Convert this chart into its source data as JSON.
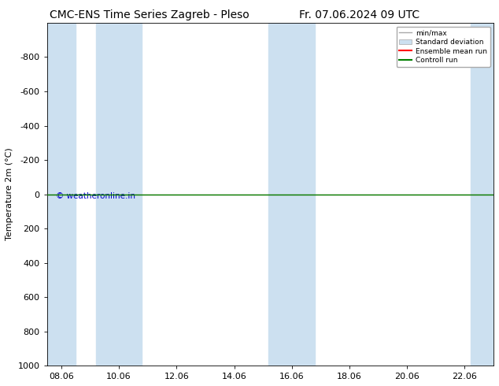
{
  "title_left": "CMC-ENS Time Series Zagreb - Pleso",
  "title_right": "Fr. 07.06.2024 09 UTC",
  "ylabel": "Temperature 2m (°C)",
  "watermark": "© weatheronline.in",
  "watermark_color": "#0000cc",
  "xlim": [
    7.5,
    23.0
  ],
  "ylim_bottom": 1000,
  "ylim_top": -1000,
  "yticks": [
    -800,
    -600,
    -400,
    -200,
    0,
    200,
    400,
    600,
    800,
    1000
  ],
  "xtick_labels": [
    "08.06",
    "10.06",
    "12.06",
    "14.06",
    "16.06",
    "18.06",
    "20.06",
    "22.06"
  ],
  "xtick_positions": [
    8.0,
    10.0,
    12.0,
    14.0,
    16.0,
    18.0,
    20.0,
    22.0
  ],
  "bg_color": "#ffffff",
  "plot_bg_color": "#ffffff",
  "band_color": "#cce0f0",
  "band_positions": [
    [
      7.5,
      8.5
    ],
    [
      9.2,
      10.8
    ],
    [
      15.2,
      16.8
    ],
    [
      22.2,
      23.0
    ]
  ],
  "green_line_color": "#008000",
  "red_line_color": "#ff0000",
  "legend_labels": [
    "min/max",
    "Standard deviation",
    "Ensemble mean run",
    "Controll run"
  ],
  "title_fontsize": 10,
  "axis_fontsize": 8,
  "tick_fontsize": 8
}
